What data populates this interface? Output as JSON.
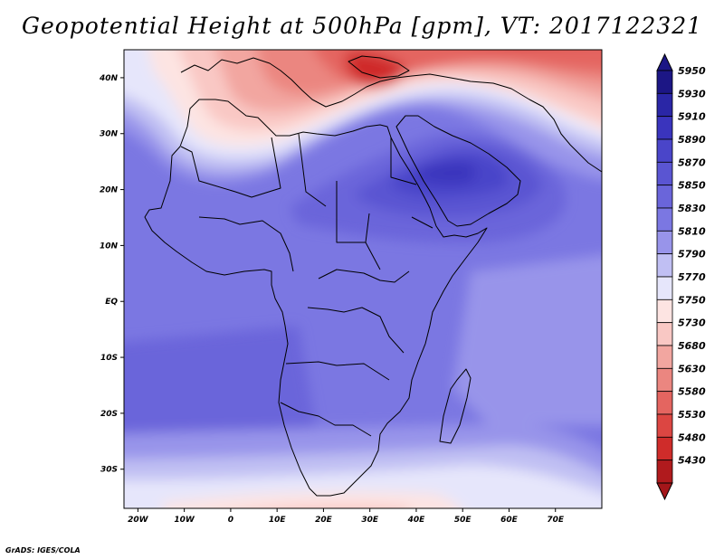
{
  "map": {
    "title": "Geopotential Height at 500hPa [gpm], VT: 2017122321",
    "projection": "latitude-longitude",
    "extent": {
      "lon_min": -23,
      "lon_max": 80,
      "lat_min": -37,
      "lat_max": 45
    },
    "lat_ticks": [
      {
        "lat": 40,
        "label": "40N"
      },
      {
        "lat": 30,
        "label": "30N"
      },
      {
        "lat": 20,
        "label": "20N"
      },
      {
        "lat": 10,
        "label": "10N"
      },
      {
        "lat": 0,
        "label": "EQ"
      },
      {
        "lat": -10,
        "label": "10S"
      },
      {
        "lat": -20,
        "label": "20S"
      },
      {
        "lat": -30,
        "label": "30S"
      }
    ],
    "lon_ticks": [
      {
        "lon": -20,
        "label": "20W"
      },
      {
        "lon": -10,
        "label": "10W"
      },
      {
        "lon": 0,
        "label": "0"
      },
      {
        "lon": 10,
        "label": "10E"
      },
      {
        "lon": 20,
        "label": "20E"
      },
      {
        "lon": 30,
        "label": "30E"
      },
      {
        "lon": 40,
        "label": "40E"
      },
      {
        "lon": 50,
        "label": "50E"
      },
      {
        "lon": 60,
        "label": "60E"
      },
      {
        "lon": 70,
        "label": "70E"
      }
    ],
    "credit": "GrADS: IGES/COLA",
    "colorbar": {
      "levels": [
        {
          "value": 5950,
          "color": "#1c1685"
        },
        {
          "value": 5930,
          "color": "#2a26a6"
        },
        {
          "value": 5910,
          "color": "#3a34bd"
        },
        {
          "value": 5890,
          "color": "#4a45c9"
        },
        {
          "value": 5870,
          "color": "#5a55d2"
        },
        {
          "value": 5850,
          "color": "#6a65da"
        },
        {
          "value": 5830,
          "color": "#7b77e2"
        },
        {
          "value": 5810,
          "color": "#9894ea"
        },
        {
          "value": 5790,
          "color": "#c0bff3"
        },
        {
          "value": 5770,
          "color": "#e6e6fb"
        },
        {
          "value": 5750,
          "color": "#fde4e2"
        },
        {
          "value": 5730,
          "color": "#f9c8c4"
        },
        {
          "value": 5680,
          "color": "#f2a6a0"
        },
        {
          "value": 5630,
          "color": "#eb8680"
        },
        {
          "value": 5580,
          "color": "#e46560"
        },
        {
          "value": 5530,
          "color": "#dc4642"
        },
        {
          "value": 5480,
          "color": "#cf2c2a"
        },
        {
          "value": 5430,
          "color": "#b01a1d"
        }
      ],
      "below_color": "#a4161a"
    },
    "field_colors": {
      "background": "#7b77e2",
      "south_atlantic": "#6a65da",
      "south_indian": "#9894ea",
      "band_5810": "#9894ea",
      "band_5790": "#c0bff3",
      "band_5770": "#e6e6fb",
      "band_5750": "#fde4e2",
      "band_5730": "#f9c8c4",
      "band_5680": "#f2a6a0",
      "band_5630": "#eb8680",
      "band_5580": "#e46560",
      "band_5530": "#dc4642",
      "band_5480": "#cf2c2a",
      "core_5850": "#6a65da",
      "core_5870": "#5a55d2",
      "core_5890": "#4a45c9",
      "core_5910": "#3a34bd"
    }
  }
}
